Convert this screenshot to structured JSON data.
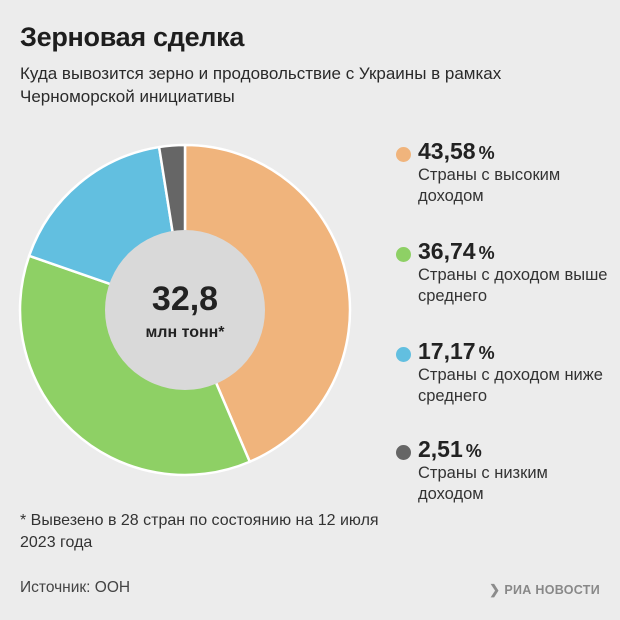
{
  "header": {
    "title": "Зерновая сделка",
    "subtitle": "Куда вывозится зерно и продовольствие с Украины в рамках Черноморской инициативы"
  },
  "chart_data": {
    "type": "pie",
    "donut": true,
    "center": {
      "value": "32,8",
      "unit": "млн тонн*"
    },
    "legend_placement": "right",
    "unit": "%",
    "series": [
      {
        "name": "Страны с высоким доходом",
        "value": 43.58,
        "label": "43,58",
        "color": "#f0b47c"
      },
      {
        "name": "Страны с доходом выше среднего",
        "value": 36.74,
        "label": "36,74",
        "color": "#8ed065"
      },
      {
        "name": "Страны с доходом ниже среднего",
        "value": 17.17,
        "label": "17,17",
        "color": "#62bfe0"
      },
      {
        "name": "Страны с низким доходом",
        "value": 2.51,
        "label": "2,51",
        "color": "#666666"
      }
    ]
  },
  "footnote": "* Вывезено в 28 стран по состоянию на 12 июля 2023 года",
  "source": "Источник: ООН",
  "brand": "РИА НОВОСТИ",
  "colors": {
    "background": "#ececec",
    "center_disc": "#d9d9d9",
    "separator": "#ffffff"
  }
}
